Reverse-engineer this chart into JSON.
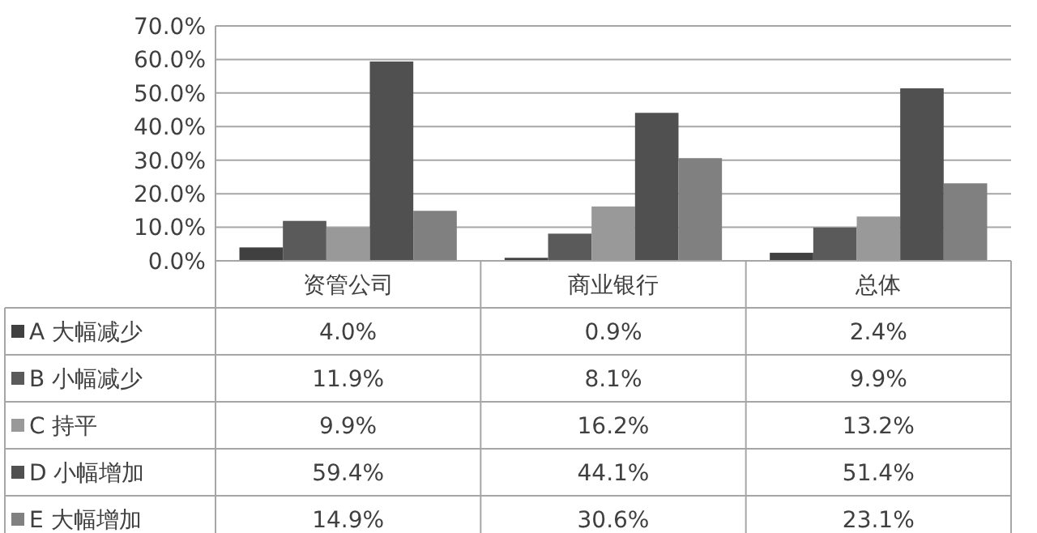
{
  "chart_data": {
    "type": "bar",
    "categories": [
      "资管公司",
      "商业银行",
      "总体"
    ],
    "series": [
      {
        "name": "A 大幅减少",
        "color": "#404040",
        "values": [
          4.0,
          0.9,
          2.4
        ],
        "value_labels": [
          "4.0%",
          "0.9%",
          "2.4%"
        ]
      },
      {
        "name": "B 小幅减少",
        "color": "#5a5a5a",
        "values": [
          11.9,
          8.1,
          9.9
        ],
        "value_labels": [
          "11.9%",
          "8.1%",
          "9.9%"
        ]
      },
      {
        "name": "C 持平",
        "color": "#999999",
        "values": [
          9.9,
          16.2,
          13.2
        ],
        "value_labels": [
          "9.9%",
          "16.2%",
          "13.2%"
        ]
      },
      {
        "name": "D 小幅增加",
        "color": "#505050",
        "values": [
          59.4,
          44.1,
          51.4
        ],
        "value_labels": [
          "59.4%",
          "44.1%",
          "51.4%"
        ]
      },
      {
        "name": "E 大幅增加",
        "color": "#808080",
        "values": [
          14.9,
          30.6,
          23.1
        ],
        "value_labels": [
          "14.9%",
          "30.6%",
          "23.1%"
        ]
      }
    ],
    "ylim": [
      0,
      70
    ],
    "yticks": [
      {
        "value": 0,
        "label": "0.0%"
      },
      {
        "value": 10,
        "label": "10.0%"
      },
      {
        "value": 20,
        "label": "20.0%"
      },
      {
        "value": 30,
        "label": "30.0%"
      },
      {
        "value": 40,
        "label": "40.0%"
      },
      {
        "value": 50,
        "label": "50.0%"
      },
      {
        "value": 60,
        "label": "60.0%"
      },
      {
        "value": 70,
        "label": "70.0%"
      }
    ],
    "grid": "y",
    "legend": "bottom left"
  }
}
